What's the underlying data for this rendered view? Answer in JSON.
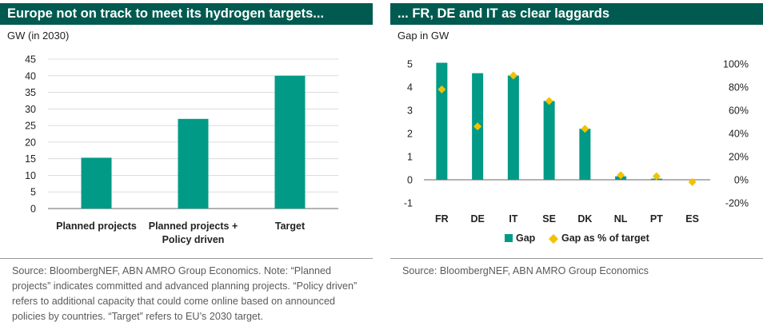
{
  "colors": {
    "header_bg": "#005a4f",
    "bar": "#009a87",
    "dot": "#f2c200",
    "axis": "#9a9a9a"
  },
  "left": {
    "title": "Europe not on track to meet its hydrogen targets...",
    "unit": "GW (in 2030)",
    "source": "Source: BloombergNEF, ABN AMRO Group Economics. Note: “Planned projects”  indicates committed and advanced planning projects. “Policy driven” refers to additional capacity that could come online based on announced policies by countries. “Target” refers to EU’s 2030 target."
  },
  "right": {
    "title": "... FR, DE and IT as clear laggards",
    "unit": "Gap in GW",
    "source": "Source: BloombergNEF, ABN AMRO Group Economics"
  },
  "chart_data": [
    {
      "type": "bar",
      "title": "Europe not on track to meet its hydrogen targets...",
      "ylabel": "GW (in 2030)",
      "categories": [
        [
          "Planned projects"
        ],
        [
          "Planned projects +",
          "Policy driven"
        ],
        [
          "Target"
        ]
      ],
      "values": [
        15.3,
        27,
        40
      ],
      "ylim": [
        0,
        45
      ],
      "yticks": [
        "0",
        "5",
        "10",
        "15",
        "20",
        "25",
        "30",
        "35",
        "40",
        "45"
      ],
      "grid": true
    },
    {
      "type": "bar",
      "title": "... FR, DE and IT as clear laggards",
      "ylabel": "Gap in GW",
      "categories": [
        "FR",
        "DE",
        "IT",
        "SE",
        "DK",
        "NL",
        "PT",
        "ES"
      ],
      "series": [
        {
          "name": "Gap",
          "type": "bar",
          "axis": "left",
          "values": [
            5.05,
            4.6,
            4.5,
            3.4,
            2.2,
            0.15,
            0.05,
            0
          ]
        },
        {
          "name": "Gap as % of target",
          "type": "scatter",
          "axis": "right",
          "values": [
            78,
            46,
            90,
            68,
            44,
            4,
            3,
            -2
          ]
        }
      ],
      "ylim": [
        -1,
        5
      ],
      "yticks": [
        "-1",
        "0",
        "1",
        "2",
        "3",
        "4",
        "5"
      ],
      "y2lim": [
        -20,
        100
      ],
      "y2ticks": [
        "-20%",
        "0%",
        "20%",
        "40%",
        "60%",
        "80%",
        "100%"
      ],
      "legend": [
        "Gap",
        "Gap as % of target"
      ],
      "legend_position": "bottom-center",
      "grid": false
    }
  ]
}
